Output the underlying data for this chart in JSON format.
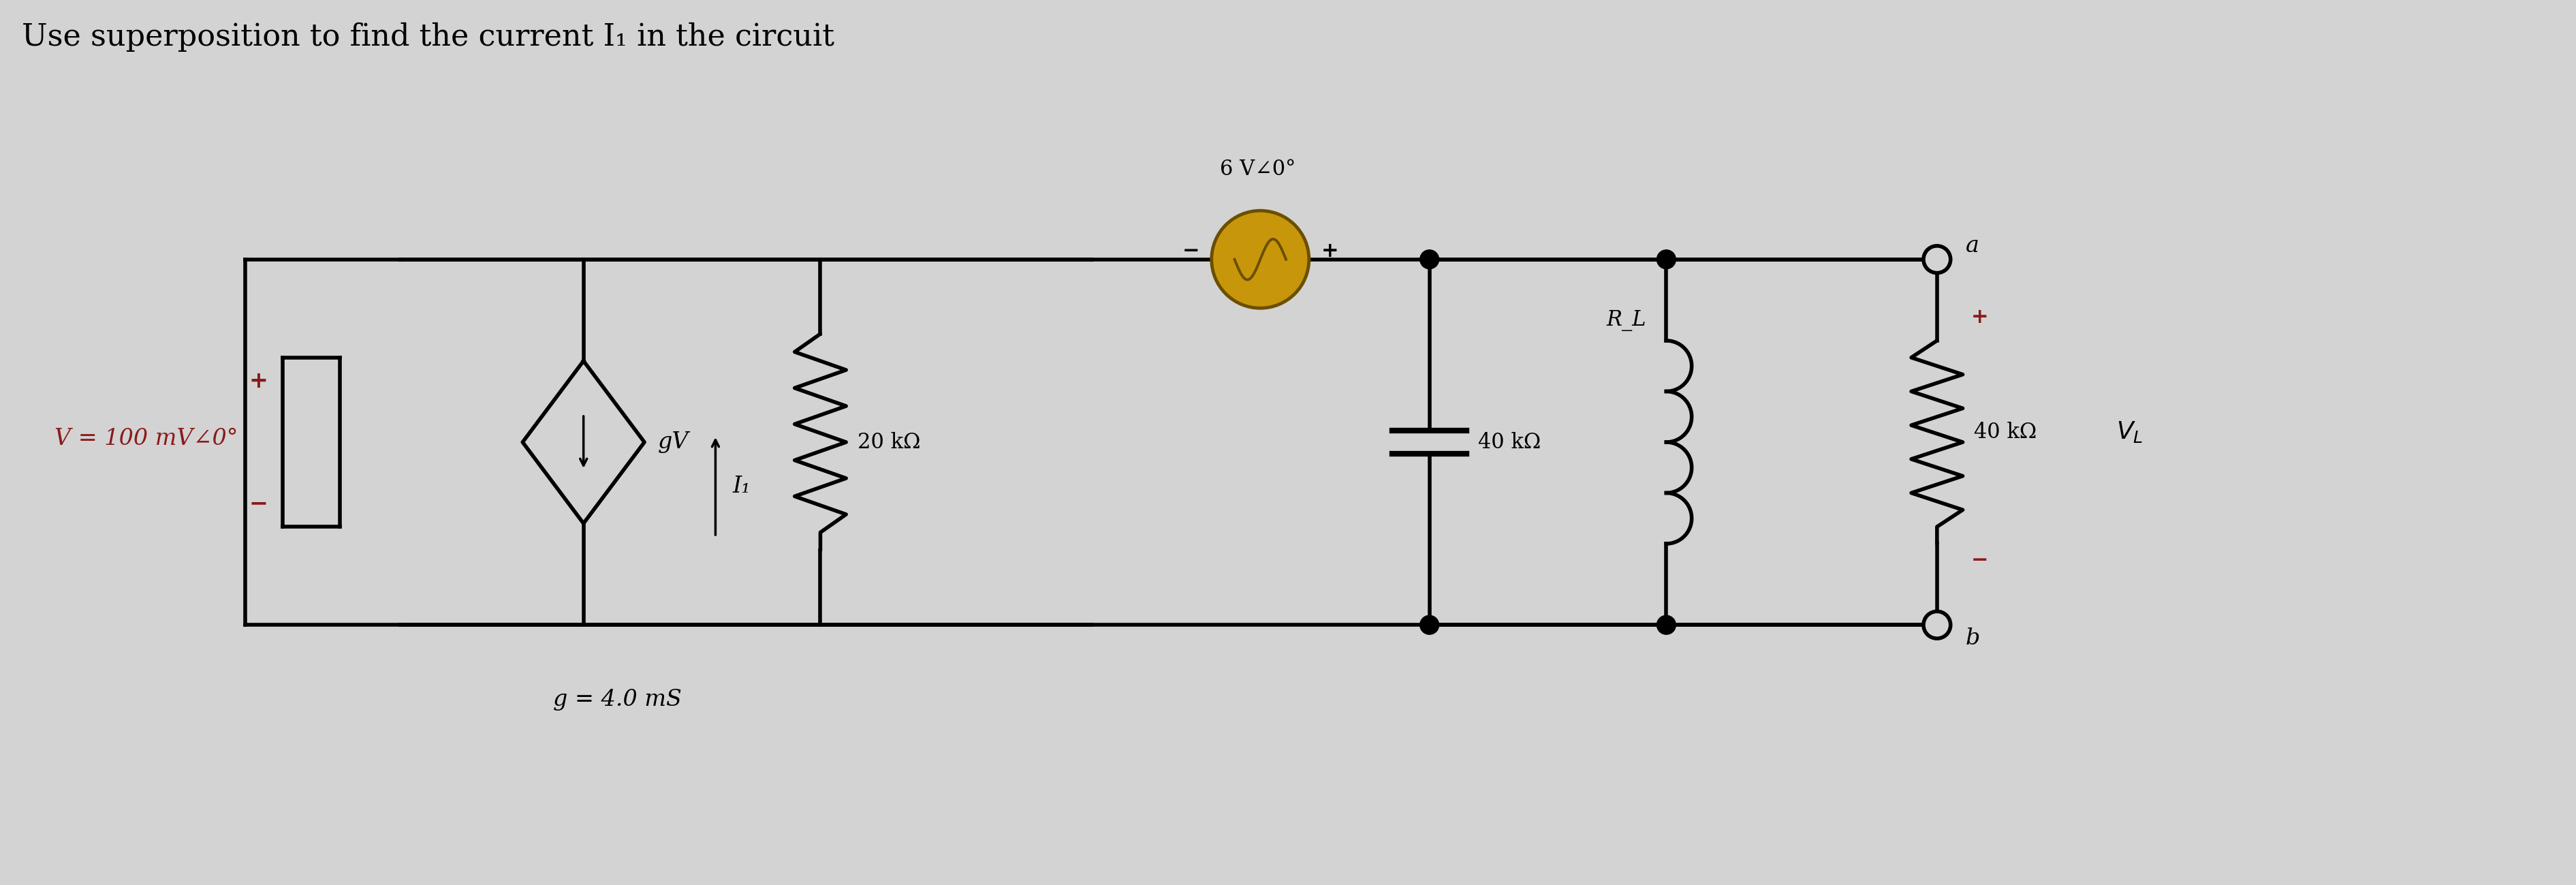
{
  "title": "Use superposition to find the current I₁ in the circuit",
  "title_fontsize": 32,
  "bg_color": "#d3d3d3",
  "line_color": "#000000",
  "source_color": "#c8960a",
  "source_edge_color": "#6b4f00",
  "V_label": "V = 100 mV∠0°",
  "V_label_color": "#8b1a1a",
  "gV_label": "gV",
  "g_label": "g = 4.0 mS",
  "source6V_label": "6 V∠0°",
  "R1_label": "20 kΩ",
  "R2_label": "40 kΩ",
  "RL_label": "R_L",
  "R3_label": "40 kΩ",
  "VL_label": "V_L",
  "I1_label": "I₁",
  "node_a": "a",
  "node_b": "b",
  "plus_color": "#8b1a1a",
  "minus_color": "#8b1a1a",
  "black": "#000000"
}
